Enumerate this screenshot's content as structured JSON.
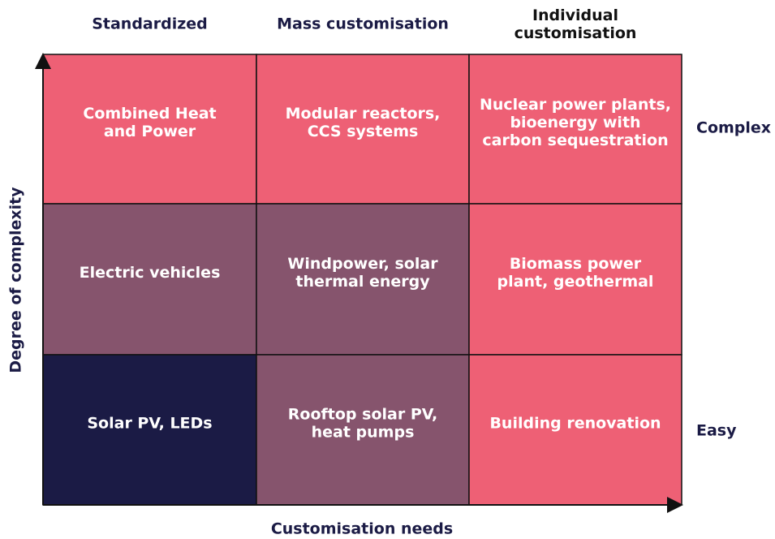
{
  "columns": [
    "Standardized",
    "Mass customisation",
    [
      "Individual",
      "customisation"
    ]
  ],
  "rows": [
    "Complex",
    null,
    "Easy"
  ],
  "y_axis_label": "Degree of complexity",
  "x_axis_label": "Customisation needs",
  "cells": [
    [
      {
        "lines": [
          "Combined Heat",
          "and Power"
        ],
        "color": "#ee6075"
      },
      {
        "lines": [
          "Modular reactors,",
          "CCS systems"
        ],
        "color": "#ee6075"
      },
      {
        "lines": [
          "Nuclear power plants,",
          "bioenergy with",
          "carbon sequestration"
        ],
        "color": "#ee6075"
      }
    ],
    [
      {
        "lines": [
          "Electric vehicles"
        ],
        "color": "#86546d"
      },
      {
        "lines": [
          "Windpower, solar",
          "thermal energy"
        ],
        "color": "#86546d"
      },
      {
        "lines": [
          "Biomass power",
          "plant, geothermal"
        ],
        "color": "#ee6075"
      }
    ],
    [
      {
        "lines": [
          "Solar PV, LEDs"
        ],
        "color": "#1b1b45"
      },
      {
        "lines": [
          "Rooftop solar PV,",
          "heat pumps"
        ],
        "color": "#86546d"
      },
      {
        "lines": [
          "Building renovation"
        ],
        "color": "#ee6075"
      }
    ]
  ]
}
